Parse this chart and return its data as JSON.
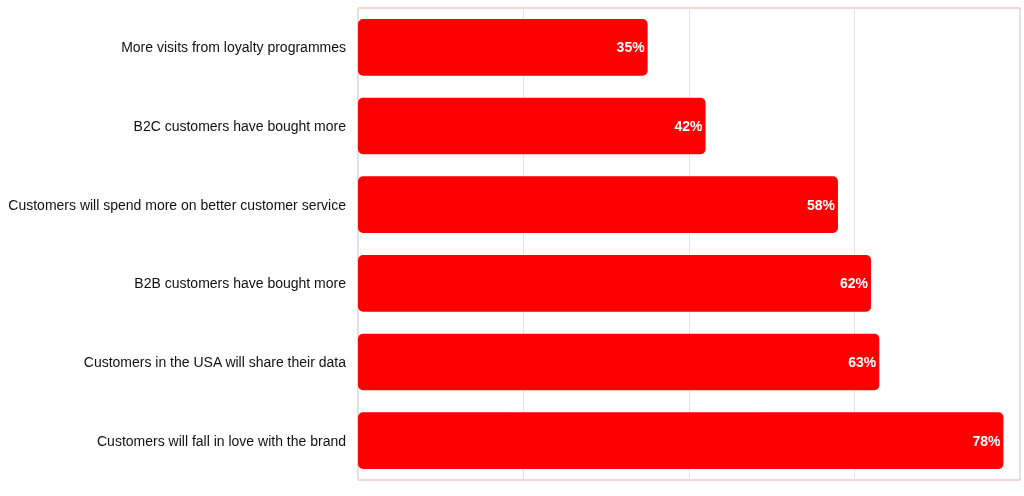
{
  "chart_data": {
    "type": "bar",
    "orientation": "horizontal",
    "categories": [
      "More visits from loyalty programmes",
      "B2C customers have bought more",
      "Customers will spend more on better customer service",
      "B2B customers have bought more",
      "Customers in the USA will share their data",
      "Customers will fall in love with the brand"
    ],
    "values": [
      35,
      42,
      58,
      62,
      63,
      78
    ],
    "value_labels": [
      "35%",
      "42%",
      "58%",
      "62%",
      "63%",
      "78%"
    ],
    "color": "#ff0000",
    "xlim": [
      0,
      80
    ],
    "xticks": [
      {
        "value": 0,
        "label": null
      },
      {
        "value": 20,
        "label": null
      },
      {
        "value": 40,
        "label": null
      },
      {
        "value": 60,
        "label": null
      },
      {
        "value": 80,
        "label": null
      }
    ],
    "grid": "x",
    "tick_labels": "y"
  }
}
